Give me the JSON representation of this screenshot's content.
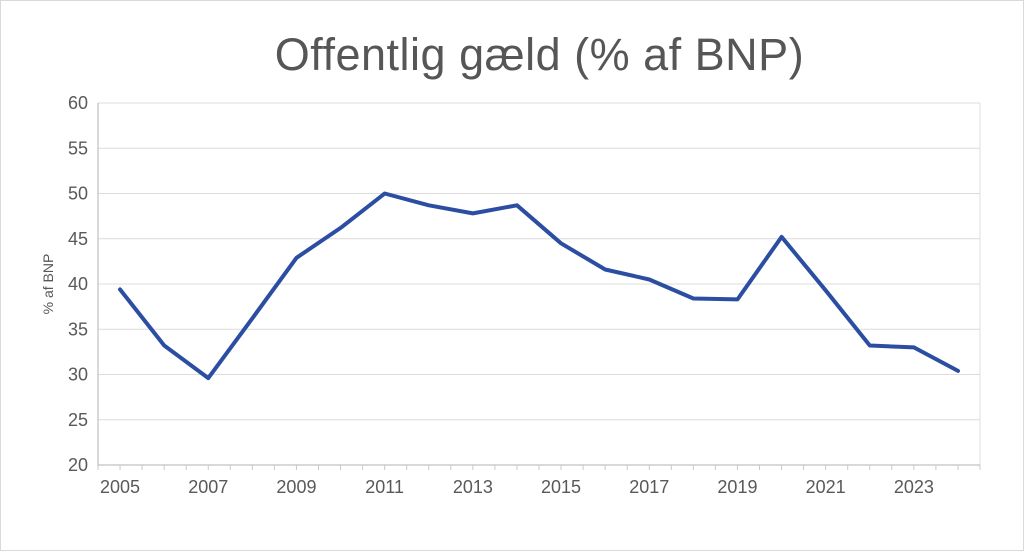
{
  "page": {
    "background": "#ffffff",
    "border_color": "#d9d9d9"
  },
  "chart_data": {
    "type": "line",
    "title": "Offentlig gæld (% af BNP)",
    "xlabel": "",
    "ylabel": "% af BNP",
    "x": [
      2005,
      2006,
      2007,
      2008,
      2009,
      2010,
      2011,
      2012,
      2013,
      2014,
      2015,
      2016,
      2017,
      2018,
      2019,
      2020,
      2021,
      2022,
      2023,
      2024
    ],
    "series": [
      {
        "name": "Offentlig gæld",
        "values": [
          39.4,
          33.2,
          29.6,
          36.2,
          42.9,
          46.2,
          50.0,
          48.7,
          47.8,
          48.7,
          44.5,
          41.6,
          40.5,
          38.4,
          38.3,
          45.2,
          39.3,
          33.2,
          33.0,
          30.4
        ],
        "color": "#2b4ea2",
        "line_width": 4
      }
    ],
    "ylim": [
      20,
      60
    ],
    "yticks": [
      20,
      25,
      30,
      35,
      40,
      45,
      50,
      55,
      60
    ],
    "xtick_labels": [
      "2005",
      "2007",
      "2009",
      "2011",
      "2013",
      "2015",
      "2017",
      "2019",
      "2021",
      "2023"
    ],
    "grid": "horizontal",
    "gridline_color": "#dcdcdc",
    "axis_color": "#b3b3b3",
    "tick_color": "#c8c8c8",
    "text_color": "#595959",
    "legend_position": "none"
  }
}
